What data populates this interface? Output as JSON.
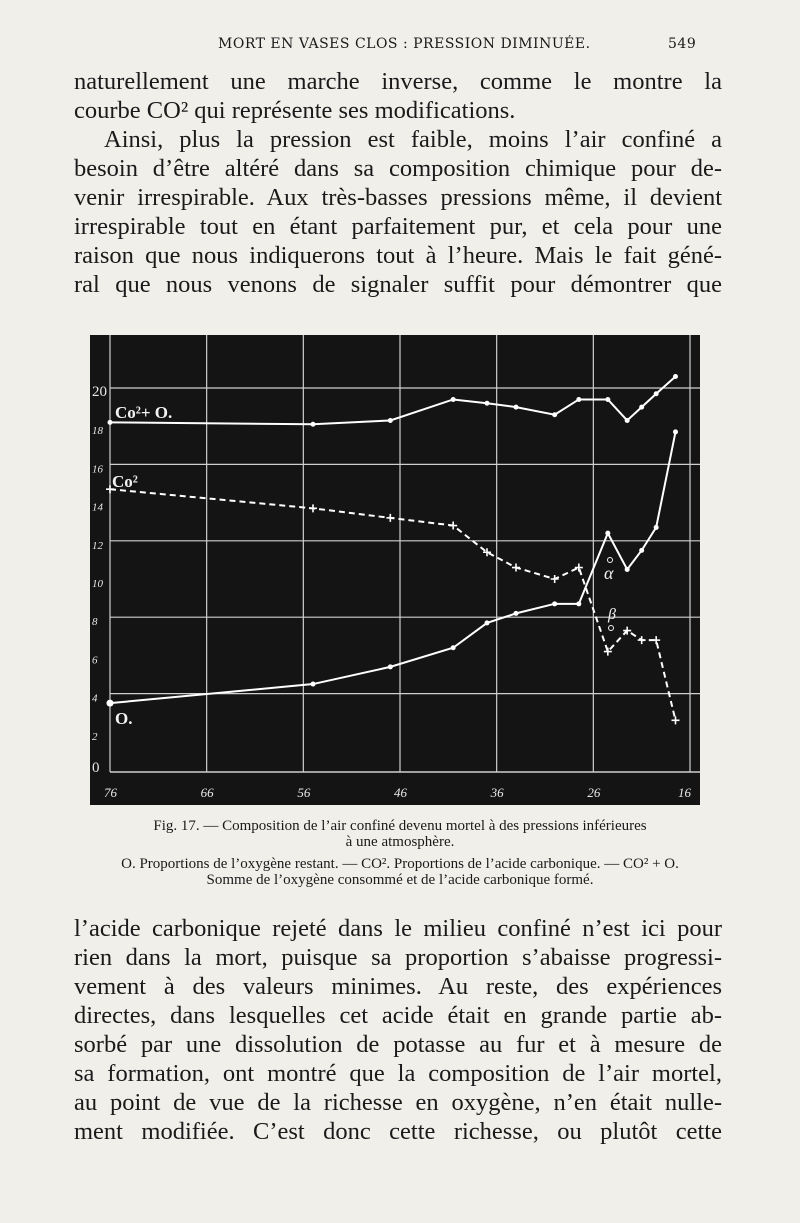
{
  "header": {
    "running_title": "MORT EN VASES CLOS : PRESSION DIMINUÉE.",
    "page_number": "549"
  },
  "top_text": [
    "naturellement une marche inverse, comme le montre la",
    "courbe CO² qui représente ses modifications.",
    "Ainsi, plus la pression est faible, moins l’air confiné a",
    "besoin d’être altéré dans sa composition chimique pour de-",
    "venir irrespirable. Aux très-basses pressions même, il devient",
    "irrespirable tout en étant parfaitement pur, et cela pour une",
    "raison que nous indiquerons tout à l’heure. Mais le fait géné-",
    "ral que nous venons de signaler suffit pour démontrer que"
  ],
  "caption": {
    "line1": "Fig. 17. — Composition de l’air confiné devenu mortel à des pressions inférieures",
    "line2": "à une atmosphère.",
    "line3": "O. Proportions de l’oxygène restant. — CO². Proportions de l’acide carbonique. — CO² + O.",
    "line4": "Somme de l’oxygène consommé et de l’acide carbonique formé."
  },
  "bottom_text": [
    "l’acide carbonique rejeté dans le milieu confiné n’est ici pour",
    "rien dans la mort, puisque sa proportion s’abaisse progressi-",
    "vement à des valeurs minimes. Au reste, des expériences",
    "directes, dans lesquelles cet acide était en grande partie ab-",
    "sorbé par une dissolution de potasse au fur et à mesure de",
    "sa formation, ont montré que la composition de l’air mortel,",
    "au point de vue de la richesse en oxygène, n’en était nulle-",
    "ment modifiée. C’est donc cette richesse, ou plutôt cette"
  ],
  "chart_data": {
    "type": "line",
    "background": "#141414",
    "line_color": "#ffffff",
    "xlim": [
      76,
      16
    ],
    "ylim": [
      0,
      22
    ],
    "grid": true,
    "x_ticks": [
      "76",
      "66",
      "56",
      "46",
      "36",
      "26",
      "16"
    ],
    "y_ticks": [
      "0",
      "2",
      "4",
      "6",
      "8",
      "10",
      "12",
      "14",
      "16",
      "18",
      "20"
    ],
    "annotations": {
      "alpha": "α",
      "beta": "β"
    },
    "series": [
      {
        "name": "Co²+ O.",
        "style": "solid",
        "x": [
          76,
          55,
          47,
          40.5,
          37,
          34,
          30,
          27.5,
          24.5,
          22.5,
          21,
          19.5,
          17.5
        ],
        "values": [
          18.2,
          18.1,
          18.3,
          19.4,
          19.2,
          19.0,
          18.6,
          19.4,
          19.4,
          18.3,
          19.0,
          19.7,
          20.6
        ]
      },
      {
        "name": "Co²",
        "style": "dashed",
        "x": [
          76,
          55,
          47,
          40.5,
          37,
          34,
          30,
          27.5,
          24.5,
          22.5,
          21,
          19.5,
          17.5
        ],
        "values": [
          14.7,
          13.7,
          13.2,
          12.8,
          11.4,
          10.6,
          10.0,
          10.6,
          6.2,
          7.3,
          6.8,
          6.8,
          2.6
        ]
      },
      {
        "name": "O.",
        "style": "solid",
        "x": [
          76,
          55,
          47,
          40.5,
          37,
          34,
          30,
          27.5,
          24.5,
          22.5,
          21,
          19.5,
          17.5
        ],
        "values": [
          3.5,
          4.5,
          5.4,
          6.4,
          7.7,
          8.2,
          8.7,
          8.7,
          12.4,
          10.5,
          11.5,
          12.7,
          17.7
        ]
      }
    ]
  }
}
